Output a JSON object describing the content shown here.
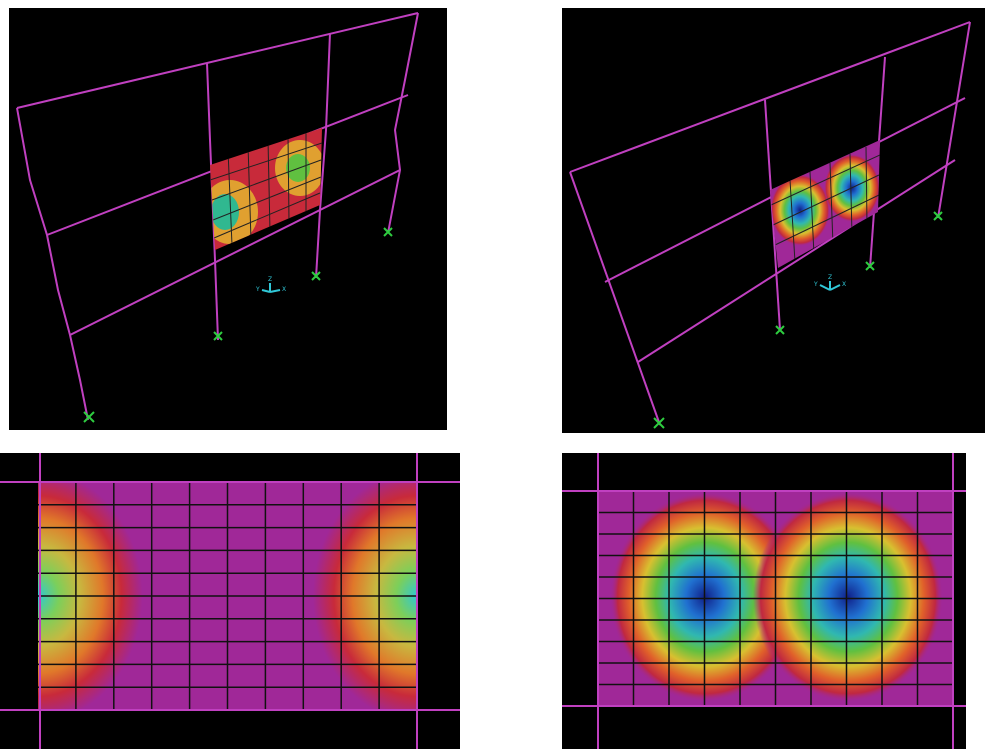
{
  "views": [
    {
      "axes": {
        "z": "Z",
        "y": "Y",
        "x": "X"
      }
    },
    {
      "axes": {
        "z": "Z",
        "y": "Y",
        "x": "X"
      }
    }
  ]
}
